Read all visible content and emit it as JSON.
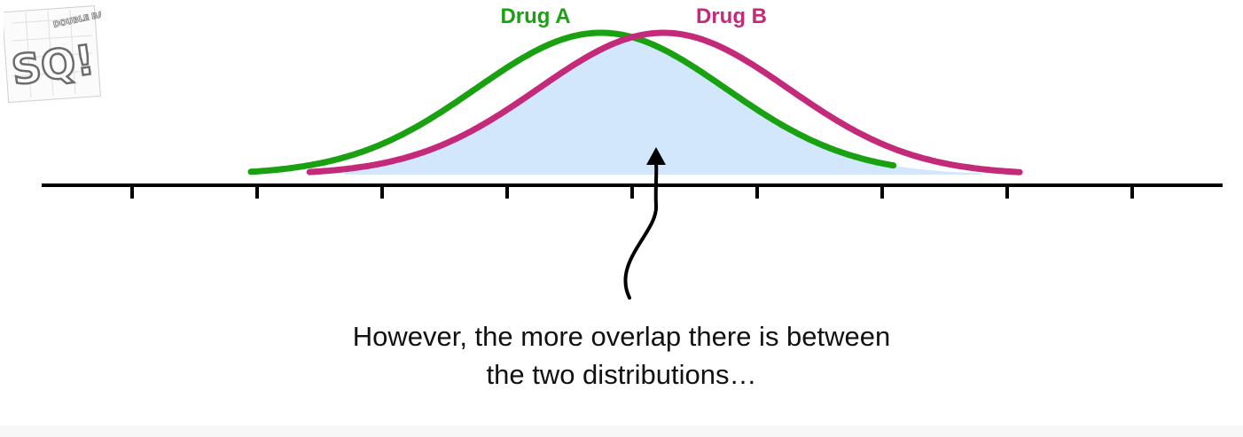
{
  "logo": {
    "big_text": "SQ!",
    "small_text": "DOUBLE BAM!!!"
  },
  "chart_data": {
    "type": "line",
    "series": [
      {
        "name": "Drug A",
        "color": "#1aa112",
        "mean": -0.25,
        "sd": 1.0
      },
      {
        "name": "Drug B",
        "color": "#c42a7a",
        "mean": 0.25,
        "sd": 1.0
      }
    ],
    "overlap_fill": "#d2e7fb",
    "axis_ticks": 9
  },
  "caption": {
    "line1": "However, the more overlap there is between",
    "line2": "the two distributions…"
  }
}
